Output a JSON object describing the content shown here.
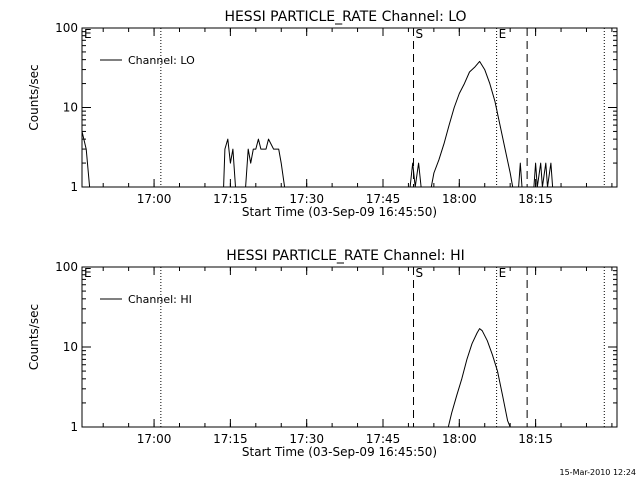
{
  "footer": {
    "timestamp": "15-Mar-2010 12:24"
  },
  "chart_data": [
    {
      "type": "line",
      "title": "HESSI PARTICLE_RATE Channel: LO",
      "xlabel": "Start Time (03-Sep-09 16:45:50)",
      "ylabel": "Counts/sec",
      "yscale": "log",
      "ylim": [
        1,
        100
      ],
      "xlim": [
        "16:45:50",
        "18:31:00"
      ],
      "x_ticks": [
        "17:00",
        "17:15",
        "17:30",
        "17:45",
        "18:00",
        "18:15"
      ],
      "y_ticks": [
        "1",
        "10",
        "100"
      ],
      "legend": {
        "placement": "top-left",
        "entries": [
          "Channel: LO"
        ]
      },
      "markers": [
        {
          "label": "E",
          "time": "16:45:50",
          "style": "none"
        },
        {
          "label": "",
          "time": "17:01:20",
          "style": "dotted"
        },
        {
          "label": "S",
          "time": "17:51:00",
          "style": "dashed"
        },
        {
          "label": "E",
          "time": "18:07:20",
          "style": "dotted"
        },
        {
          "label": "",
          "time": "18:13:20",
          "style": "dashed"
        },
        {
          "label": "",
          "time": "18:28:30",
          "style": "dotted"
        }
      ],
      "series": [
        {
          "name": "Channel: LO",
          "points": [
            [
              "16:45:50",
              5
            ],
            [
              "16:46:40",
              3
            ],
            [
              "16:47:20",
              1
            ],
            [
              "17:13:40",
              1
            ],
            [
              "17:13:55",
              3
            ],
            [
              "17:14:30",
              4
            ],
            [
              "17:15:00",
              2
            ],
            [
              "17:15:30",
              3
            ],
            [
              "17:16:00",
              1
            ],
            [
              "17:18:00",
              1
            ],
            [
              "17:18:30",
              3
            ],
            [
              "17:19:00",
              2
            ],
            [
              "17:19:30",
              3
            ],
            [
              "17:20:00",
              3
            ],
            [
              "17:20:30",
              4
            ],
            [
              "17:21:00",
              3
            ],
            [
              "17:22:00",
              3
            ],
            [
              "17:22:30",
              4
            ],
            [
              "17:23:30",
              3
            ],
            [
              "17:24:30",
              3
            ],
            [
              "17:25:00",
              2
            ],
            [
              "17:25:40",
              1
            ],
            [
              "17:50:20",
              1
            ],
            [
              "17:50:50",
              2
            ],
            [
              "17:51:20",
              1
            ],
            [
              "17:52:00",
              2
            ],
            [
              "17:52:30",
              1
            ],
            [
              "17:54:30",
              1
            ],
            [
              "17:55:00",
              1.5
            ],
            [
              "17:56:00",
              2.2
            ],
            [
              "17:57:00",
              3.5
            ],
            [
              "17:58:00",
              6
            ],
            [
              "17:59:00",
              10
            ],
            [
              "18:00:00",
              15
            ],
            [
              "18:01:00",
              20
            ],
            [
              "18:02:00",
              28
            ],
            [
              "18:03:00",
              32
            ],
            [
              "18:04:00",
              38
            ],
            [
              "18:05:00",
              30
            ],
            [
              "18:06:00",
              20
            ],
            [
              "18:07:00",
              12
            ],
            [
              "18:08:00",
              6
            ],
            [
              "18:09:00",
              3
            ],
            [
              "18:10:00",
              1.5
            ],
            [
              "18:10:30",
              1
            ],
            [
              "18:11:40",
              1
            ],
            [
              "18:12:00",
              2
            ],
            [
              "18:12:20",
              1
            ],
            [
              "18:14:40",
              1
            ],
            [
              "18:15:00",
              2
            ],
            [
              "18:15:20",
              1
            ],
            [
              "18:16:00",
              2
            ],
            [
              "18:16:20",
              1
            ],
            [
              "18:17:00",
              2
            ],
            [
              "18:17:20",
              1
            ],
            [
              "18:18:00",
              2
            ],
            [
              "18:18:20",
              1
            ]
          ]
        }
      ]
    },
    {
      "type": "line",
      "title": "HESSI PARTICLE_RATE Channel: HI",
      "xlabel": "Start Time (03-Sep-09 16:45:50)",
      "ylabel": "Counts/sec",
      "yscale": "log",
      "ylim": [
        1,
        100
      ],
      "xlim": [
        "16:45:50",
        "18:31:00"
      ],
      "x_ticks": [
        "17:00",
        "17:15",
        "17:30",
        "17:45",
        "18:00",
        "18:15"
      ],
      "y_ticks": [
        "1",
        "10",
        "100"
      ],
      "legend": {
        "placement": "top-left",
        "entries": [
          "Channel: HI"
        ]
      },
      "markers": [
        {
          "label": "E",
          "time": "16:45:50",
          "style": "none"
        },
        {
          "label": "",
          "time": "17:01:20",
          "style": "dotted"
        },
        {
          "label": "S",
          "time": "17:51:00",
          "style": "dashed"
        },
        {
          "label": "E",
          "time": "18:07:20",
          "style": "dotted"
        },
        {
          "label": "",
          "time": "18:13:20",
          "style": "dashed"
        },
        {
          "label": "",
          "time": "18:28:30",
          "style": "dotted"
        }
      ],
      "series": [
        {
          "name": "Channel: HI",
          "points": [
            [
              "17:57:50",
              1
            ],
            [
              "17:58:30",
              1.5
            ],
            [
              "17:59:30",
              2.5
            ],
            [
              "18:00:30",
              4
            ],
            [
              "18:01:30",
              7
            ],
            [
              "18:02:30",
              11
            ],
            [
              "18:03:30",
              15
            ],
            [
              "18:04:00",
              17
            ],
            [
              "18:04:30",
              16
            ],
            [
              "18:05:30",
              12
            ],
            [
              "18:06:30",
              8
            ],
            [
              "18:07:30",
              5
            ],
            [
              "18:08:30",
              2.5
            ],
            [
              "18:09:30",
              1.2
            ],
            [
              "18:10:00",
              1
            ]
          ]
        }
      ]
    }
  ]
}
